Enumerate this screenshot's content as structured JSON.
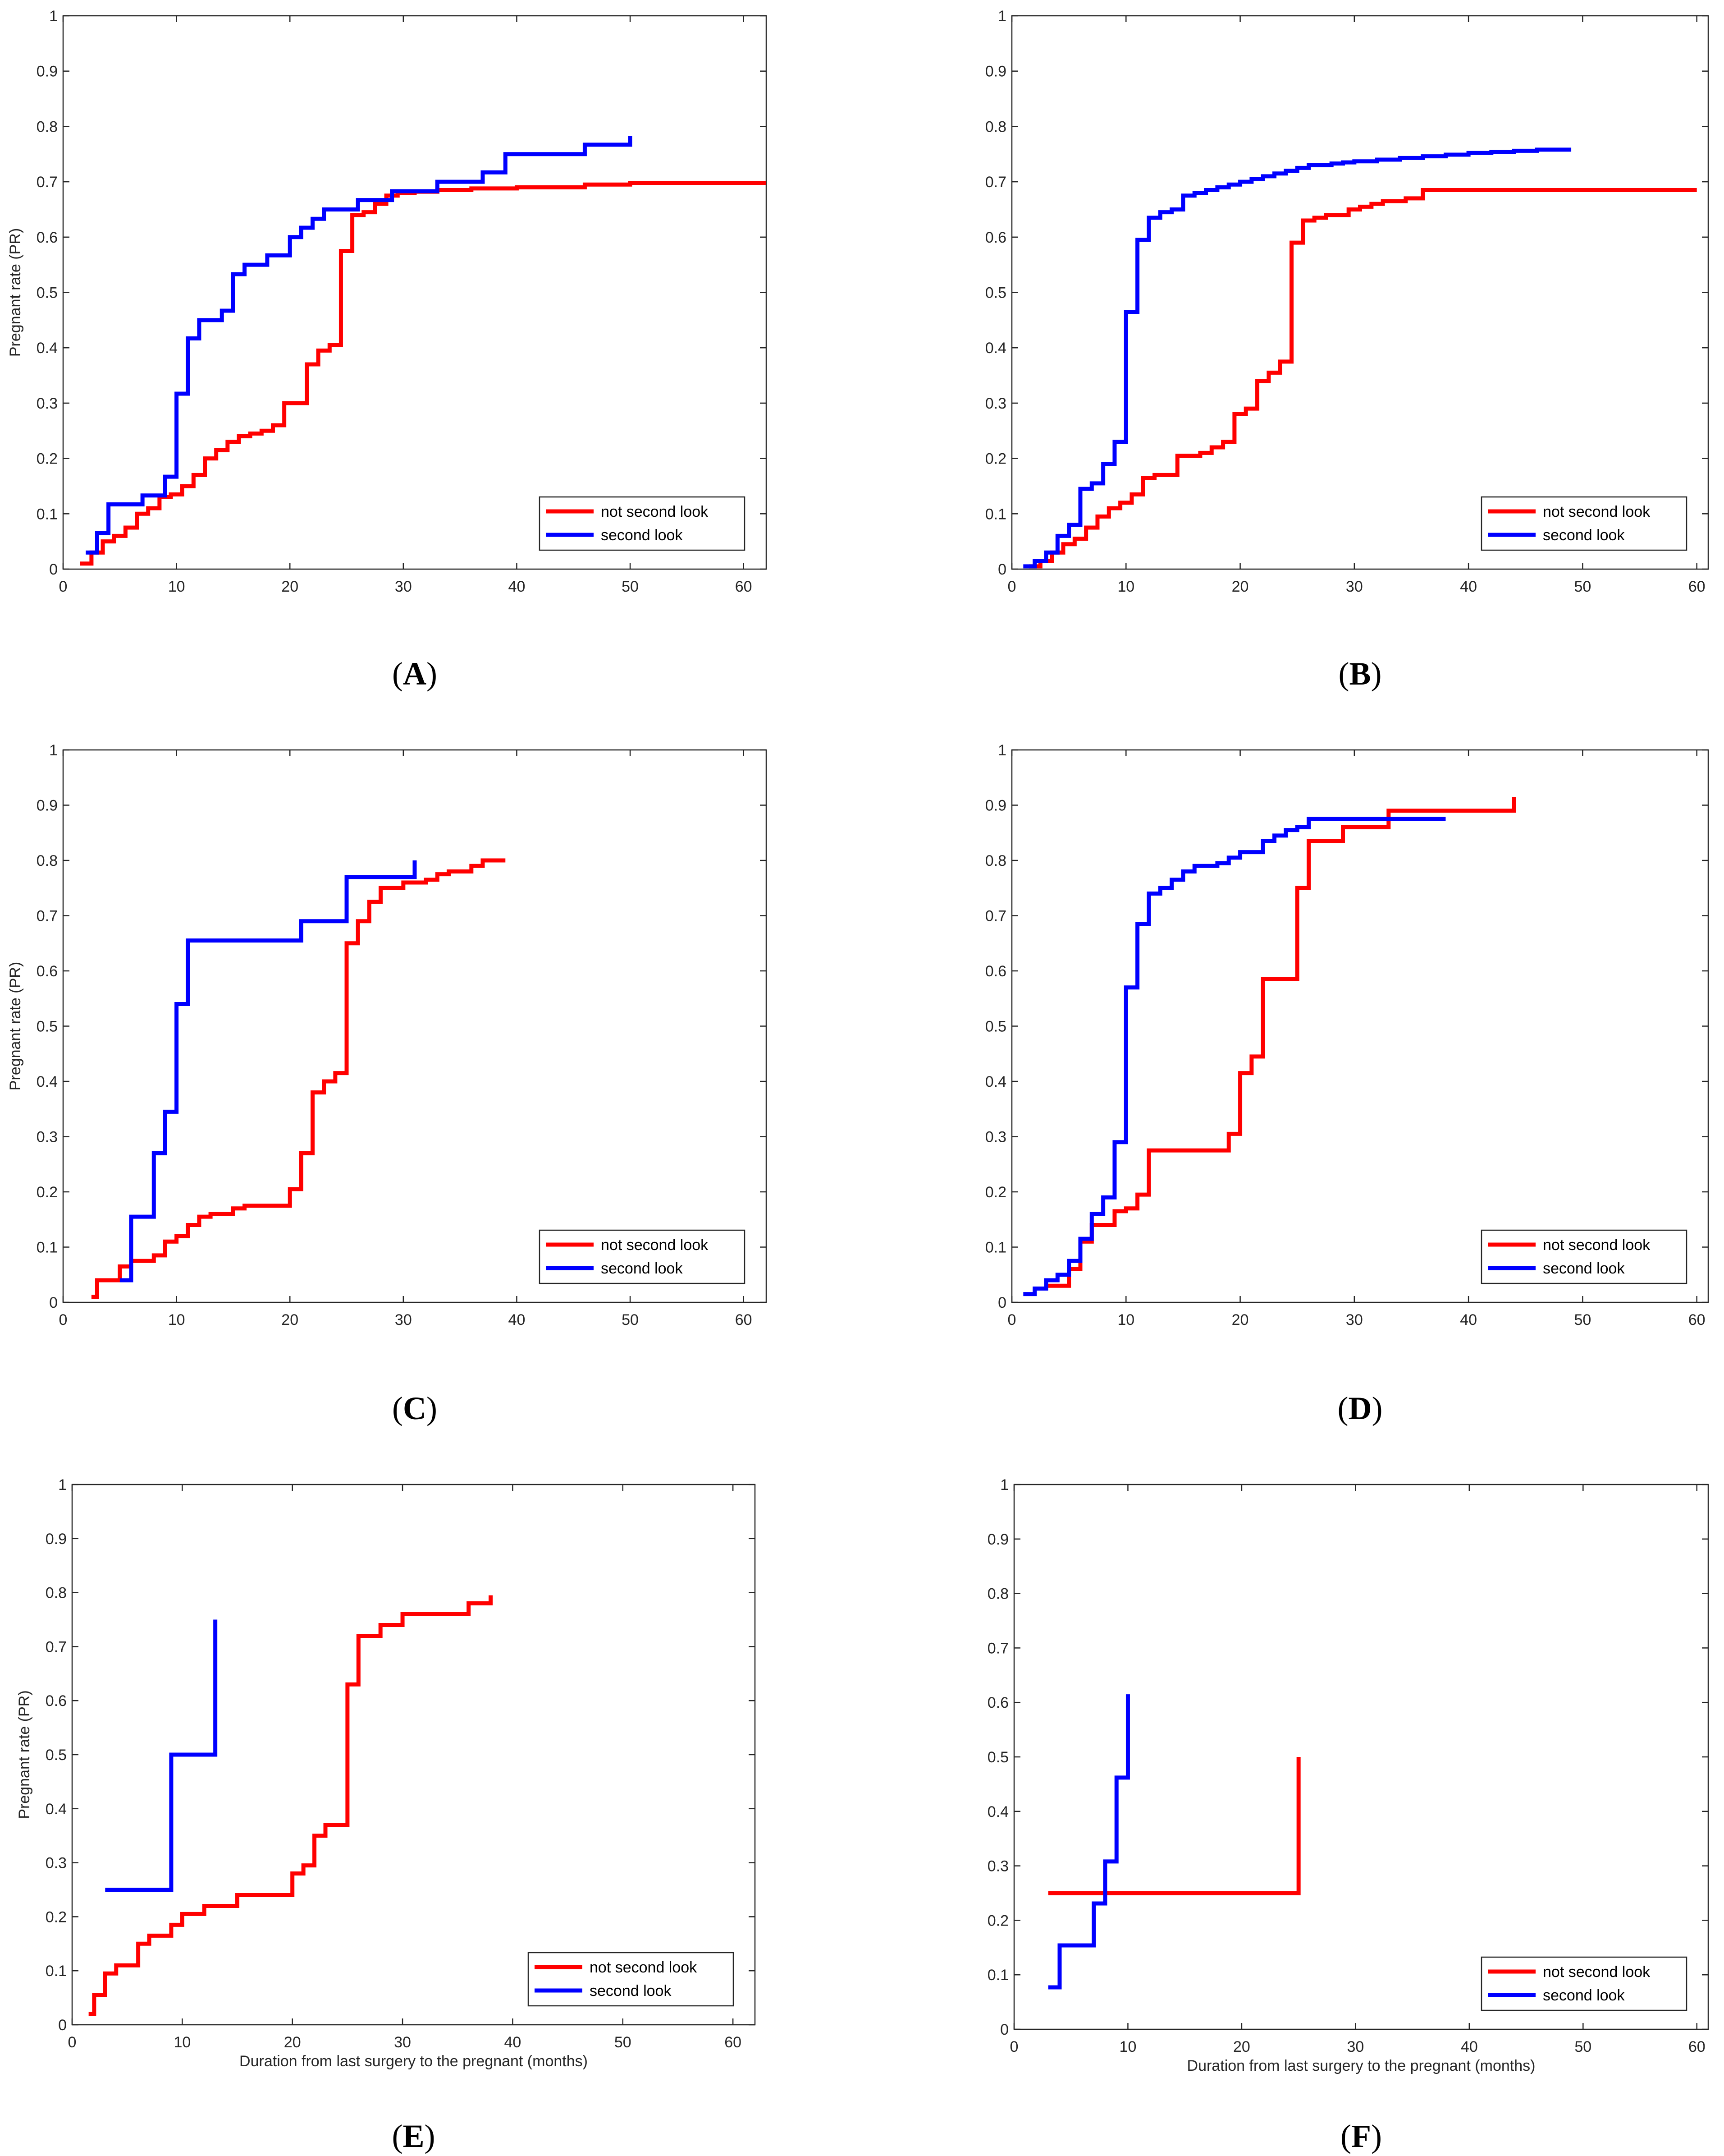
{
  "chart_data": [
    {
      "id": "A",
      "type": "line",
      "panel_label": "A",
      "step": true,
      "xlim": [
        0,
        62
      ],
      "ylim": [
        0,
        1
      ],
      "xticks": [
        0,
        10,
        20,
        30,
        40,
        50,
        60
      ],
      "yticks": [
        0,
        0.1,
        0.2,
        0.3,
        0.4,
        0.5,
        0.6,
        0.7,
        0.8,
        0.9,
        1
      ],
      "ylabel": "Pregnant rate (PR)",
      "xlabel": "",
      "legend_position": "bottom-right",
      "series": [
        {
          "name": "not second look",
          "color": "#ff0000",
          "x": [
            1.5,
            2.5,
            3.5,
            4.5,
            5.5,
            6.5,
            7.5,
            8.5,
            9.5,
            10.5,
            11.5,
            12.5,
            13.5,
            14.5,
            15.5,
            16.5,
            17.5,
            18.5,
            19.5,
            20.5,
            21.5,
            22.5,
            23.5,
            24.5,
            25.5,
            26.5,
            27.5,
            28.5,
            29.5,
            31,
            33,
            36,
            40,
            46,
            50,
            62
          ],
          "y": [
            0.01,
            0.03,
            0.05,
            0.06,
            0.075,
            0.1,
            0.11,
            0.13,
            0.135,
            0.15,
            0.17,
            0.2,
            0.215,
            0.23,
            0.24,
            0.245,
            0.25,
            0.26,
            0.3,
            0.3,
            0.37,
            0.395,
            0.405,
            0.575,
            0.64,
            0.645,
            0.66,
            0.675,
            0.68,
            0.682,
            0.685,
            0.688,
            0.69,
            0.695,
            0.698,
            0.698
          ]
        },
        {
          "name": "second look",
          "color": "#0000ff",
          "x": [
            2,
            3,
            4,
            7,
            9,
            10,
            11,
            12,
            14,
            15,
            16,
            18,
            20,
            21,
            22,
            23,
            26,
            29,
            33,
            37,
            39,
            46,
            50
          ],
          "y": [
            0.03,
            0.065,
            0.117,
            0.133,
            0.167,
            0.317,
            0.417,
            0.45,
            0.467,
            0.533,
            0.55,
            0.567,
            0.6,
            0.617,
            0.633,
            0.65,
            0.667,
            0.683,
            0.7,
            0.717,
            0.75,
            0.767,
            0.783
          ]
        }
      ]
    },
    {
      "id": "B",
      "type": "line",
      "panel_label": "B",
      "step": true,
      "xlim": [
        0,
        61
      ],
      "ylim": [
        0,
        1
      ],
      "xticks": [
        0,
        10,
        20,
        30,
        40,
        50,
        60
      ],
      "yticks": [
        0,
        0.1,
        0.2,
        0.3,
        0.4,
        0.5,
        0.6,
        0.7,
        0.8,
        0.9,
        1
      ],
      "ylabel": "",
      "xlabel": "",
      "legend_position": "bottom-right",
      "series": [
        {
          "name": "not second look",
          "color": "#ff0000",
          "x": [
            1.5,
            2.5,
            3.5,
            4.5,
            5.5,
            6.5,
            7.5,
            8.5,
            9.5,
            10.5,
            11.5,
            12.5,
            14.5,
            15.5,
            16.5,
            17.5,
            18.5,
            19.5,
            20.5,
            21.5,
            22.5,
            23.5,
            24.5,
            25.5,
            26.5,
            27.5,
            29.5,
            30.5,
            31.5,
            32.5,
            34.5,
            36,
            60
          ],
          "y": [
            0.005,
            0.015,
            0.03,
            0.045,
            0.055,
            0.075,
            0.095,
            0.11,
            0.12,
            0.135,
            0.165,
            0.17,
            0.205,
            0.205,
            0.21,
            0.22,
            0.23,
            0.28,
            0.29,
            0.34,
            0.355,
            0.375,
            0.59,
            0.63,
            0.635,
            0.64,
            0.65,
            0.655,
            0.66,
            0.665,
            0.67,
            0.685,
            0.685
          ]
        },
        {
          "name": "second look",
          "color": "#0000ff",
          "x": [
            1,
            2,
            3,
            4,
            5,
            6,
            7,
            8,
            9,
            10,
            11,
            12,
            13,
            14,
            15,
            16,
            17,
            18,
            19,
            20,
            21,
            22,
            23,
            24,
            25,
            26,
            27,
            28,
            29,
            30,
            32,
            34,
            36,
            38,
            40,
            42,
            44,
            46,
            49
          ],
          "y": [
            0.005,
            0.015,
            0.03,
            0.06,
            0.08,
            0.145,
            0.155,
            0.19,
            0.23,
            0.465,
            0.595,
            0.635,
            0.645,
            0.65,
            0.675,
            0.68,
            0.685,
            0.69,
            0.695,
            0.7,
            0.705,
            0.71,
            0.715,
            0.72,
            0.725,
            0.73,
            0.73,
            0.733,
            0.735,
            0.737,
            0.74,
            0.743,
            0.746,
            0.749,
            0.752,
            0.754,
            0.756,
            0.758,
            0.758
          ]
        }
      ]
    },
    {
      "id": "C",
      "type": "line",
      "panel_label": "C",
      "step": true,
      "xlim": [
        0,
        62
      ],
      "ylim": [
        0,
        1
      ],
      "xticks": [
        0,
        10,
        20,
        30,
        40,
        50,
        60
      ],
      "yticks": [
        0,
        0.1,
        0.2,
        0.3,
        0.4,
        0.5,
        0.6,
        0.7,
        0.8,
        0.9,
        1
      ],
      "ylabel": "Pregnant rate (PR)",
      "xlabel": "",
      "legend_position": "bottom-right",
      "series": [
        {
          "name": "not second look",
          "color": "#ff0000",
          "x": [
            2.5,
            3,
            5,
            6,
            8,
            9,
            10,
            11,
            12,
            13,
            15,
            16,
            19,
            20,
            21,
            22,
            23,
            24,
            25,
            26,
            27,
            28,
            30,
            32,
            33,
            34,
            36,
            37,
            39
          ],
          "y": [
            0.01,
            0.04,
            0.065,
            0.075,
            0.085,
            0.11,
            0.12,
            0.14,
            0.155,
            0.16,
            0.17,
            0.175,
            0.175,
            0.205,
            0.27,
            0.38,
            0.4,
            0.415,
            0.65,
            0.69,
            0.725,
            0.75,
            0.76,
            0.765,
            0.775,
            0.78,
            0.79,
            0.8,
            0.8
          ]
        },
        {
          "name": "second look",
          "color": "#0000ff",
          "x": [
            5,
            6,
            8,
            9,
            10,
            11,
            21,
            25,
            31
          ],
          "y": [
            0.04,
            0.155,
            0.27,
            0.345,
            0.54,
            0.655,
            0.69,
            0.77,
            0.8
          ]
        }
      ]
    },
    {
      "id": "D",
      "type": "line",
      "panel_label": "D",
      "step": true,
      "xlim": [
        0,
        61
      ],
      "ylim": [
        0,
        1
      ],
      "xticks": [
        0,
        10,
        20,
        30,
        40,
        50,
        60
      ],
      "yticks": [
        0,
        0.1,
        0.2,
        0.3,
        0.4,
        0.5,
        0.6,
        0.7,
        0.8,
        0.9,
        1
      ],
      "ylabel": "",
      "xlabel": "",
      "legend_position": "bottom-right",
      "series": [
        {
          "name": "not second look",
          "color": "#ff0000",
          "x": [
            3,
            5,
            6,
            7,
            9,
            10,
            11,
            12,
            19,
            20,
            21,
            22,
            25,
            26,
            29,
            33,
            44
          ],
          "y": [
            0.03,
            0.06,
            0.11,
            0.14,
            0.165,
            0.17,
            0.195,
            0.275,
            0.305,
            0.415,
            0.445,
            0.585,
            0.75,
            0.835,
            0.86,
            0.89,
            0.915
          ]
        },
        {
          "name": "second look",
          "color": "#0000ff",
          "x": [
            1,
            2,
            3,
            4,
            5,
            6,
            7,
            8,
            9,
            10,
            11,
            12,
            13,
            14,
            15,
            16,
            18,
            19,
            20,
            22,
            23,
            24,
            25,
            26,
            38
          ],
          "y": [
            0.015,
            0.025,
            0.04,
            0.05,
            0.075,
            0.115,
            0.16,
            0.19,
            0.29,
            0.57,
            0.685,
            0.74,
            0.75,
            0.765,
            0.78,
            0.79,
            0.795,
            0.805,
            0.815,
            0.835,
            0.845,
            0.855,
            0.86,
            0.875,
            0.875
          ]
        }
      ]
    },
    {
      "id": "E",
      "type": "line",
      "panel_label": "E",
      "step": true,
      "xlim": [
        0,
        62
      ],
      "ylim": [
        0,
        1
      ],
      "xticks": [
        0,
        10,
        20,
        30,
        40,
        50,
        60
      ],
      "yticks": [
        0,
        0.1,
        0.2,
        0.3,
        0.4,
        0.5,
        0.6,
        0.7,
        0.8,
        0.9,
        1
      ],
      "ylabel": "Pregnant rate (PR)",
      "xlabel": "Duration from last surgery to the pregnant (months)",
      "legend_position": "bottom-right",
      "series": [
        {
          "name": "not second look",
          "color": "#ff0000",
          "x": [
            1.5,
            2,
            3,
            4,
            6,
            7,
            9,
            10,
            12,
            15,
            20,
            21,
            22,
            23,
            25,
            26,
            28,
            30,
            36,
            38
          ],
          "y": [
            0.02,
            0.055,
            0.095,
            0.11,
            0.15,
            0.165,
            0.185,
            0.205,
            0.22,
            0.24,
            0.28,
            0.295,
            0.35,
            0.37,
            0.63,
            0.72,
            0.74,
            0.76,
            0.78,
            0.795
          ]
        },
        {
          "name": "second look",
          "color": "#0000ff",
          "x": [
            3,
            9,
            13
          ],
          "y": [
            0.25,
            0.5,
            0.75
          ]
        }
      ]
    },
    {
      "id": "F",
      "type": "line",
      "panel_label": "F",
      "step": true,
      "xlim": [
        0,
        61
      ],
      "ylim": [
        0,
        1
      ],
      "xticks": [
        0,
        10,
        20,
        30,
        40,
        50,
        60
      ],
      "yticks": [
        0,
        0.1,
        0.2,
        0.3,
        0.4,
        0.5,
        0.6,
        0.7,
        0.8,
        0.9,
        1
      ],
      "ylabel": "",
      "xlabel": "Duration from last surgery to the pregnant (months)",
      "legend_position": "bottom-right",
      "series": [
        {
          "name": "not second look",
          "color": "#ff0000",
          "x": [
            3,
            25
          ],
          "y": [
            0.25,
            0.5
          ]
        },
        {
          "name": "second look",
          "color": "#0000ff",
          "x": [
            3,
            4,
            7,
            8,
            9,
            10
          ],
          "y": [
            0.077,
            0.154,
            0.231,
            0.308,
            0.462,
            0.615
          ]
        }
      ]
    }
  ]
}
